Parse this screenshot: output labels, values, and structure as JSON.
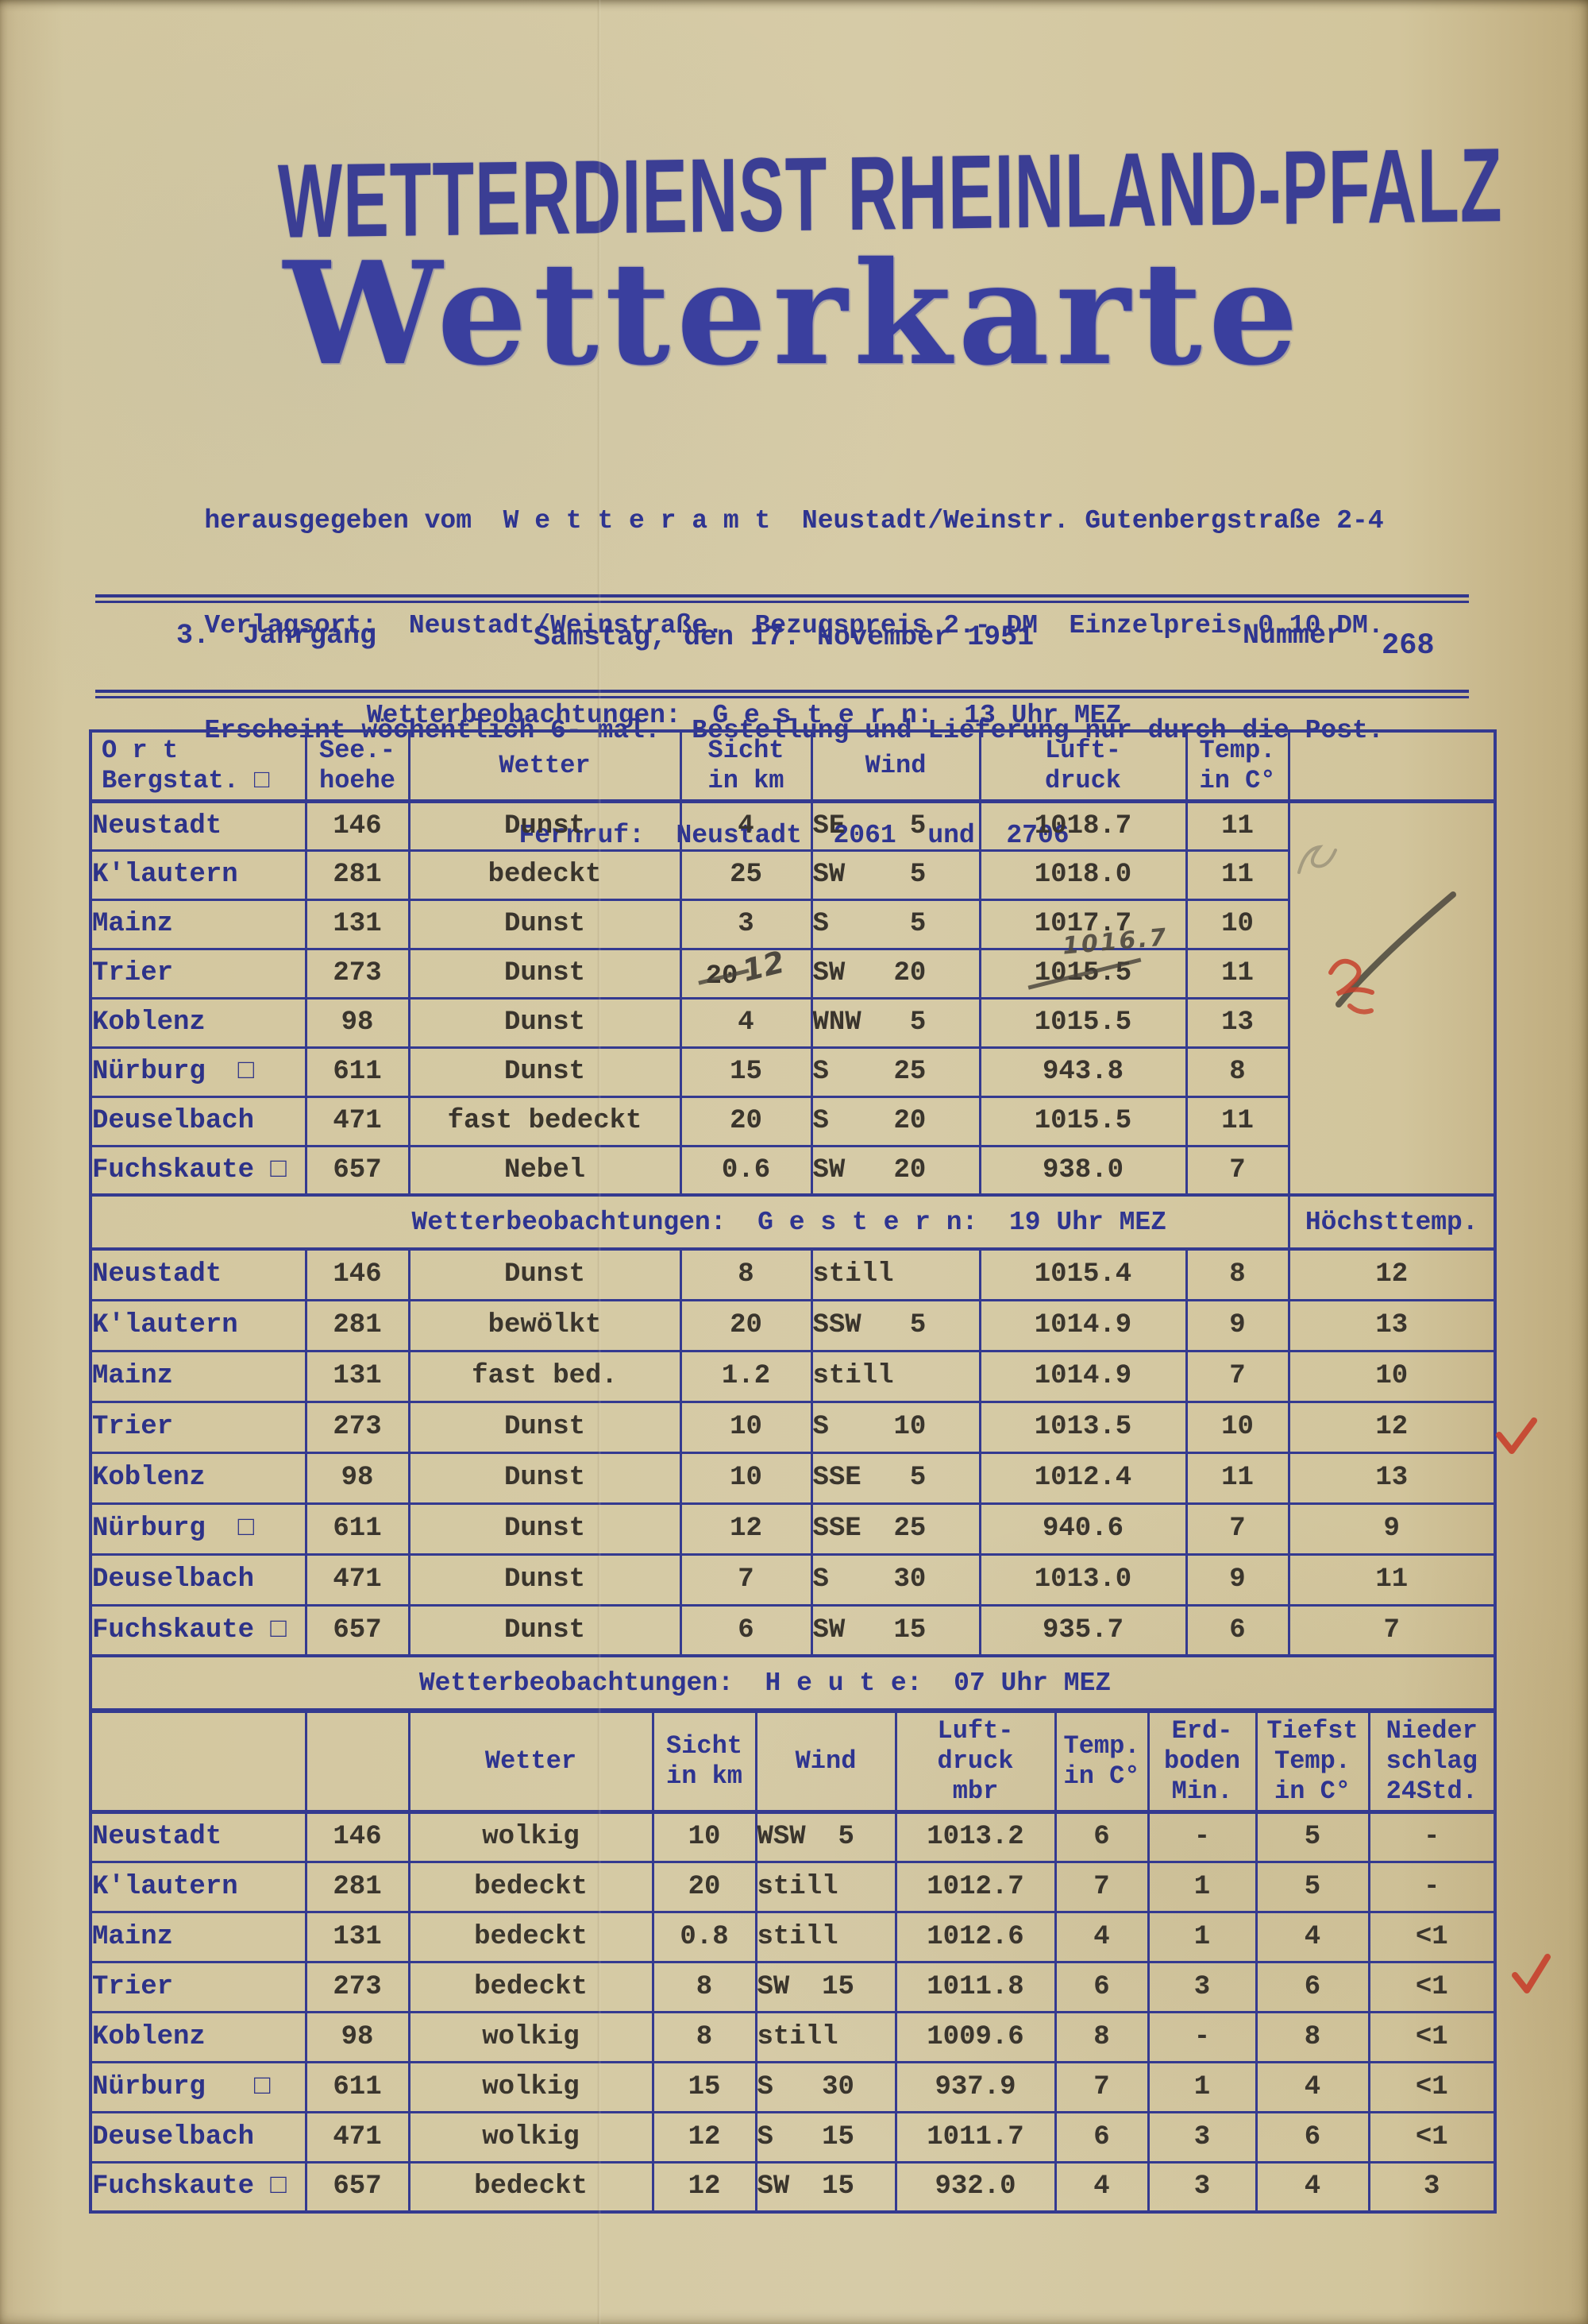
{
  "page": {
    "masthead": "WETTERDIENST RHEINLAND-PFALZ",
    "title": "Wetterkarte",
    "imprint": [
      "herausgegeben vom  W e t t e r a m t  Neustadt/Weinstr. Gutenbergstraße 2-4",
      "Verlagsort:  Neustadt/Weinstraße.  Bezugspreis 2.- DM  Einzelpreis 0.10 DM.",
      "Erscheint wöchentlich 6- mal.  Bestellung und Lieferung nur durch die Post.",
      "Fernruf:  Neustadt  2061  und  2706"
    ],
    "edition": {
      "jahrgang": "3.  Jahrgang",
      "date": "Samstag, den 17. November 1951",
      "nummer_label": "Nummer",
      "nummer": "268"
    }
  },
  "sections": {
    "s1": {
      "title": "Wetterbeobachtungen:  G e s t e r n:  13 Uhr MEZ"
    },
    "s2": {
      "title": "Wetterbeobachtungen:  G e s t e r n:  19 Uhr MEZ",
      "extra_col": "Höchsttemp."
    },
    "s3": {
      "title": "Wetterbeobachtungen:  H e u t e:  07 Uhr MEZ"
    }
  },
  "colors": {
    "paper": "#d5c9a3",
    "ink_blue": "#33388f",
    "ink_black": "#3a352d",
    "red_check": "#c6402c",
    "pencil": "#4d483f"
  },
  "tables": {
    "t1": {
      "headers": {
        "ort": "O r t\nBergstat. □",
        "see": "See.-\nhoehe",
        "wetter": "Wetter",
        "sicht": "Sicht\nin km",
        "wind": "Wind",
        "druck": "Luft-\ndruck",
        "temp": "Temp.\nin C°",
        "margin": ""
      },
      "colkeys": [
        "ort",
        "seehoehe",
        "wetter",
        "sicht",
        "wind",
        "luftdruck",
        "temp"
      ],
      "colclass": [
        "c-st",
        "c-ct",
        "c-ct",
        "c-ct",
        "c-wd",
        "c-ct",
        "c-ct"
      ],
      "rows": [
        [
          "Neustadt",
          "146",
          "Dunst",
          "4",
          "SE    5",
          "1018.7",
          "11"
        ],
        [
          "K'lautern",
          "281",
          "bedeckt",
          "25",
          "SW    5",
          "1018.0",
          "11"
        ],
        [
          "Mainz",
          "131",
          "Dunst",
          "3",
          "S     5",
          "1017.7",
          "10"
        ],
        [
          "Trier",
          "273",
          "Dunst",
          {
            "struck": "20",
            "pencil": "12"
          },
          "SW   20",
          {
            "struck": "1015.5",
            "pencil": "1016.7",
            "above": true
          },
          "11"
        ],
        [
          "Koblenz",
          "98",
          "Dunst",
          "4",
          "WNW   5",
          "1015.5",
          "13"
        ],
        [
          "Nürburg  □",
          "611",
          "Dunst",
          "15",
          "S    25",
          "943.8",
          "8"
        ],
        [
          "Deuselbach",
          "471",
          "fast bedeckt",
          "20",
          "S    20",
          "1015.5",
          "11"
        ],
        [
          "Fuchskaute □",
          "657",
          "Nebel",
          "0.6",
          "SW   20",
          "938.0",
          "7"
        ]
      ]
    },
    "t2": {
      "colkeys": [
        "ort",
        "seehoehe",
        "wetter",
        "sicht",
        "wind",
        "luftdruck",
        "temp",
        "hoechsttemp"
      ],
      "colclass": [
        "c-st",
        "c-ct",
        "c-ct",
        "c-ct",
        "c-wd",
        "c-ct",
        "c-ct",
        "c-ct"
      ],
      "rows": [
        [
          "Neustadt",
          "146",
          "Dunst",
          "8",
          "still",
          "1015.4",
          "8",
          "12"
        ],
        [
          "K'lautern",
          "281",
          "bewölkt",
          "20",
          "SSW   5",
          "1014.9",
          "9",
          "13"
        ],
        [
          "Mainz",
          "131",
          "fast bed.",
          "1.2",
          "still",
          "1014.9",
          "7",
          "10"
        ],
        [
          "Trier",
          "273",
          "Dunst",
          "10",
          "S    10",
          "1013.5",
          "10",
          "12"
        ],
        [
          "Koblenz",
          "98",
          "Dunst",
          "10",
          "SSE   5",
          "1012.4",
          "11",
          "13"
        ],
        [
          "Nürburg  □",
          "611",
          "Dunst",
          "12",
          "SSE  25",
          "940.6",
          "7",
          "9"
        ],
        [
          "Deuselbach",
          "471",
          "Dunst",
          "7",
          "S    30",
          "1013.0",
          "9",
          "11"
        ],
        [
          "Fuchskaute □",
          "657",
          "Dunst",
          "6",
          "SW   15",
          "935.7",
          "6",
          "7"
        ]
      ]
    },
    "t3": {
      "headers": {
        "ort": "",
        "see": "",
        "wetter": "Wetter",
        "sicht": "Sicht\nin km",
        "wind": "Wind",
        "druck": "Luft-\ndruck\nmbr",
        "temp": "Temp.\nin C°",
        "erdboden": "Erd-\nboden\nMin.",
        "tiefst": "Tiefst\nTemp.\nin C°",
        "nieder": "Nieder\nschlag\n24Std."
      },
      "colkeys": [
        "ort",
        "seehoehe",
        "wetter",
        "sicht",
        "wind",
        "luftdruck",
        "temp",
        "erdboden_min",
        "tiefst_temp",
        "niederschlag"
      ],
      "colclass": [
        "c-st",
        "c-ct",
        "c-ct",
        "c-ct",
        "c-wd3",
        "c-ct",
        "c-ct",
        "c-ct",
        "c-ct",
        "c-ct"
      ],
      "rows": [
        [
          "Neustadt",
          "146",
          "wolkig",
          "10",
          "WSW  5",
          "1013.2",
          "6",
          "-",
          "5",
          "-"
        ],
        [
          "K'lautern",
          "281",
          "bedeckt",
          "20",
          "still",
          "1012.7",
          "7",
          "1",
          "5",
          "-"
        ],
        [
          "Mainz",
          "131",
          "bedeckt",
          "0.8",
          "still",
          "1012.6",
          "4",
          "1",
          "4",
          "<1"
        ],
        [
          "Trier",
          "273",
          "bedeckt",
          "8",
          "SW  15",
          "1011.8",
          "6",
          "3",
          "6",
          "<1"
        ],
        [
          "Koblenz",
          "98",
          "wolkig",
          "8",
          "still",
          "1009.6",
          "8",
          "-",
          "8",
          "<1"
        ],
        [
          "Nürburg   □",
          "611",
          "wolkig",
          "15",
          "S   30",
          "937.9",
          "7",
          "1",
          "4",
          "<1"
        ],
        [
          "Deuselbach",
          "471",
          "wolkig",
          "12",
          "S   15",
          "1011.7",
          "6",
          "3",
          "6",
          "<1"
        ],
        [
          "Fuchskaute □",
          "657",
          "bedeckt",
          "12",
          "SW  15",
          "932.0",
          "4",
          "3",
          "4",
          "3"
        ]
      ]
    }
  },
  "annotations": {
    "trier_13h_sicht_correction": {
      "struck": "20",
      "pencil": "12"
    },
    "trier_13h_druck_correction": {
      "struck": "1015.5",
      "pencil": "1016.7"
    },
    "marks": [
      "pencil-squiggle-table1-margin",
      "pencil-diagonal-stroke-table1-margin",
      "red-squiggle-table1-margin",
      "red-check-trier-19h",
      "red-check-trier-07h"
    ]
  }
}
